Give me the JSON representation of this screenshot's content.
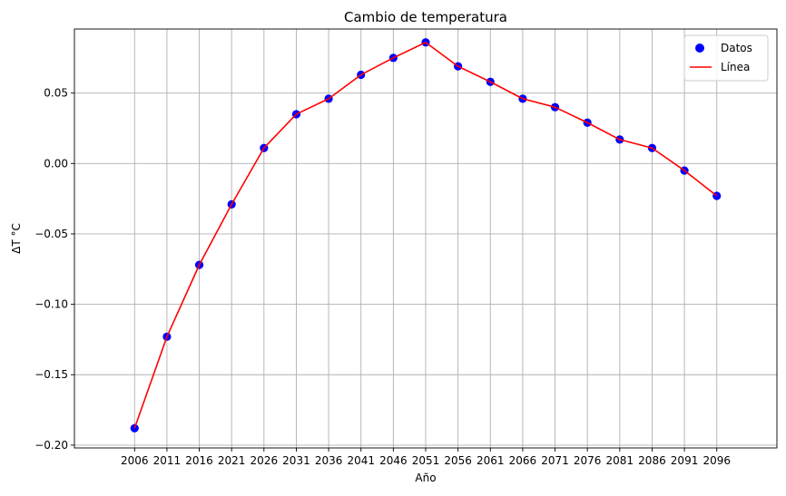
{
  "chart_data": {
    "type": "line",
    "title": "Cambio de temperatura",
    "xlabel": "Año",
    "ylabel": "ΔT °C",
    "x": [
      2006,
      2011,
      2016,
      2021,
      2026,
      2031,
      2036,
      2041,
      2046,
      2051,
      2056,
      2061,
      2066,
      2071,
      2076,
      2081,
      2086,
      2091,
      2096
    ],
    "x_tick_labels": [
      "2006",
      "2011",
      "2016",
      "2021",
      "2026",
      "2031",
      "2036",
      "2041",
      "2046",
      "2051",
      "2056",
      "2061",
      "2066",
      "2071",
      "2076",
      "2081",
      "2086",
      "2091",
      "2096"
    ],
    "y_ticks": [
      -0.2,
      -0.15,
      -0.1,
      -0.05,
      0.0,
      0.05
    ],
    "y_tick_labels": [
      "−0.20",
      "−0.15",
      "−0.10",
      "−0.05",
      "0.00",
      "0.05"
    ],
    "ylim": [
      -0.202,
      0.0955
    ],
    "grid": true,
    "legend_position": "top-right",
    "series": [
      {
        "name": "Datos",
        "kind": "scatter",
        "color": "#0000ff",
        "values": [
          -0.188,
          -0.123,
          -0.072,
          -0.029,
          0.011,
          0.035,
          0.046,
          0.063,
          0.075,
          0.086,
          0.069,
          0.058,
          0.046,
          0.04,
          0.029,
          0.017,
          0.011,
          -0.005,
          -0.023
        ]
      },
      {
        "name": "Línea",
        "kind": "line",
        "color": "#ff0000",
        "values": [
          -0.188,
          -0.123,
          -0.072,
          -0.029,
          0.011,
          0.035,
          0.046,
          0.063,
          0.075,
          0.086,
          0.069,
          0.058,
          0.046,
          0.04,
          0.029,
          0.017,
          0.011,
          -0.005,
          -0.023
        ]
      }
    ]
  }
}
